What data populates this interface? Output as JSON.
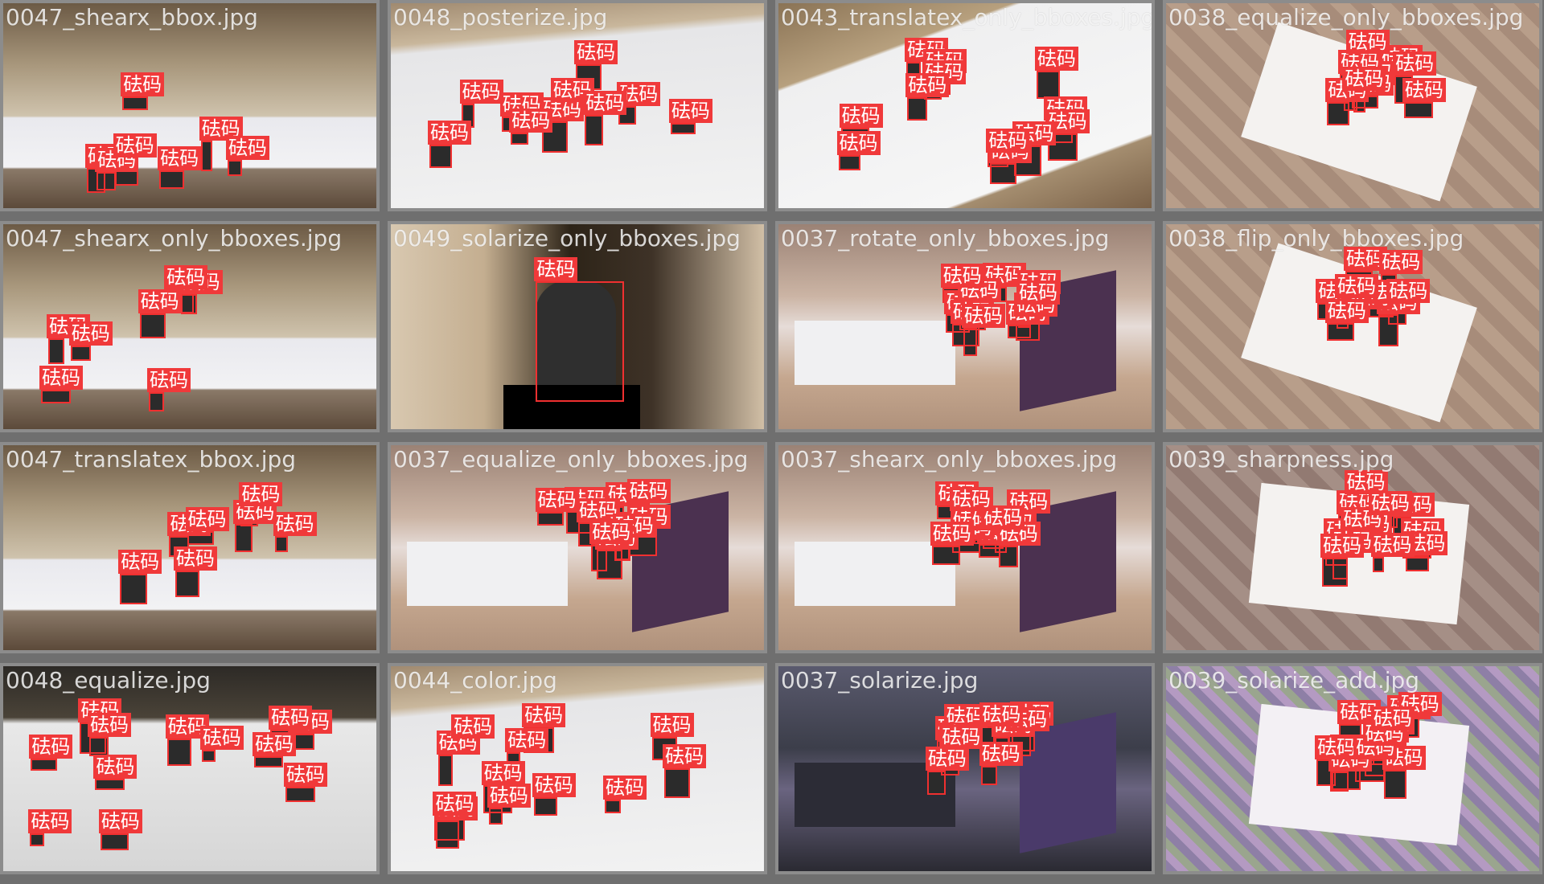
{
  "label_text": "砝码",
  "colors": {
    "frame": "#8c8c8c",
    "bg": "#6f6f6f",
    "box": "#f03030",
    "label_bg": "#f0393a"
  },
  "tiles": [
    {
      "name": "0047_shearx_bbox.jpg",
      "scene": "hall_a",
      "boxes": 7
    },
    {
      "name": "0048_posterize.jpg",
      "scene": "table_white",
      "boxes": 10
    },
    {
      "name": "0043_translatex_only_bboxes.jpg",
      "scene": "table_corner",
      "boxes": 12
    },
    {
      "name": "0038_equalize_only_bboxes.jpg",
      "scene": "parquet_table",
      "boxes": 9
    },
    {
      "name": "0047_shearx_only_bboxes.jpg",
      "scene": "hall_a",
      "boxes": 7
    },
    {
      "name": "0049_solarize_only_bboxes.jpg",
      "scene": "weight_close",
      "boxes": 1
    },
    {
      "name": "0037_rotate_only_bboxes.jpg",
      "scene": "restaurant",
      "boxes": 10
    },
    {
      "name": "0038_flip_only_bboxes.jpg",
      "scene": "parquet_table",
      "boxes": 9
    },
    {
      "name": "0047_translatex_bbox.jpg",
      "scene": "hall_a",
      "boxes": 7
    },
    {
      "name": "0037_equalize_only_bboxes.jpg",
      "scene": "restaurant",
      "boxes": 10
    },
    {
      "name": "0037_shearx_only_bboxes.jpg",
      "scene": "restaurant",
      "boxes": 10
    },
    {
      "name": "0039_sharpness.jpg",
      "scene": "parquet_table2",
      "boxes": 12
    },
    {
      "name": "0048_equalize.jpg",
      "scene": "table_noisy",
      "boxes": 12
    },
    {
      "name": "0044_color.jpg",
      "scene": "table_white",
      "boxes": 12
    },
    {
      "name": "0037_solarize.jpg",
      "scene": "restaurant_dark",
      "boxes": 10
    },
    {
      "name": "0039_solarize_add.jpg",
      "scene": "parquet_purple",
      "boxes": 12
    }
  ]
}
